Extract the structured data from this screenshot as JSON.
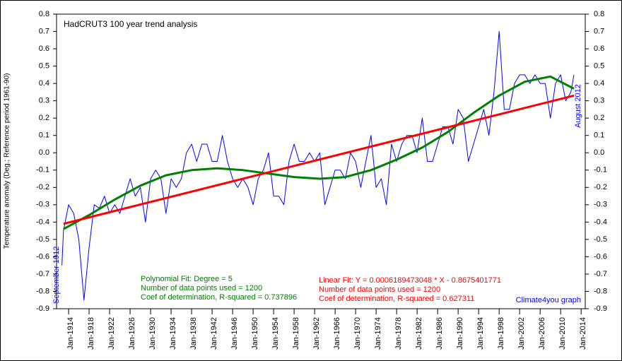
{
  "chart_data": {
    "type": "line",
    "title": "HadCRUT3 100 year trend analysis",
    "y_label": "Temperature anomaly (Deg.; Reference period 1961-90)",
    "annotations": {
      "start": "September 1912",
      "end": "August 2012",
      "poly_1": "Polynomial Fit:   Degree = 5",
      "poly_2": "Number of data points used = 1200",
      "poly_3": "Coef of determination, R-squared = 0.737896",
      "lin_1": "Linear Fit:   Y = 0.0006189473048 * X - 0.8675401771",
      "lin_2": "Number of data points used = 1200",
      "lin_3": "Coef of determination, R-squared = 0.627311",
      "credit": "Climate4you graph"
    },
    "x": [
      1912.7,
      1913,
      1914,
      1915,
      1916,
      1917,
      1918,
      1919,
      1920,
      1921,
      1922,
      1923,
      1924,
      1925,
      1926,
      1927,
      1928,
      1929,
      1930,
      1931,
      1932,
      1933,
      1934,
      1935,
      1936,
      1937,
      1938,
      1939,
      1940,
      1941,
      1942,
      1943,
      1944,
      1945,
      1946,
      1947,
      1948,
      1949,
      1950,
      1951,
      1952,
      1953,
      1954,
      1955,
      1956,
      1957,
      1958,
      1959,
      1960,
      1961,
      1962,
      1963,
      1964,
      1965,
      1966,
      1967,
      1968,
      1969,
      1970,
      1971,
      1972,
      1973,
      1974,
      1975,
      1976,
      1977,
      1978,
      1979,
      1980,
      1981,
      1982,
      1983,
      1984,
      1985,
      1986,
      1987,
      1988,
      1989,
      1990,
      1991,
      1992,
      1993,
      1994,
      1995,
      1996,
      1997,
      1998,
      1999,
      2000,
      2001,
      2002,
      2003,
      2004,
      2005,
      2006,
      2007,
      2008,
      2009,
      2010,
      2011,
      2012,
      2012.6
    ],
    "series": [
      {
        "color": "#0000ff",
        "values": [
          -0.65,
          -0.45,
          -0.3,
          -0.35,
          -0.5,
          -0.85,
          -0.55,
          -0.3,
          -0.32,
          -0.25,
          -0.35,
          -0.3,
          -0.35,
          -0.25,
          -0.15,
          -0.25,
          -0.2,
          -0.4,
          -0.15,
          -0.1,
          -0.15,
          -0.35,
          -0.15,
          -0.2,
          -0.15,
          0.0,
          0.05,
          -0.05,
          0.05,
          0.05,
          -0.05,
          -0.05,
          0.1,
          -0.05,
          -0.15,
          -0.2,
          -0.15,
          -0.2,
          -0.3,
          -0.15,
          -0.1,
          0.0,
          -0.25,
          -0.25,
          -0.3,
          -0.05,
          0.05,
          -0.05,
          -0.05,
          0.0,
          -0.05,
          0.0,
          -0.3,
          -0.2,
          -0.1,
          -0.1,
          -0.15,
          0.0,
          -0.05,
          -0.2,
          -0.05,
          0.1,
          -0.2,
          -0.15,
          -0.3,
          0.05,
          -0.05,
          0.05,
          0.1,
          0.1,
          0.0,
          0.2,
          -0.05,
          -0.05,
          0.05,
          0.15,
          0.15,
          0.05,
          0.25,
          0.2,
          -0.05,
          0.05,
          0.15,
          0.25,
          0.1,
          0.35,
          0.7,
          0.25,
          0.25,
          0.4,
          0.45,
          0.45,
          0.4,
          0.45,
          0.4,
          0.4,
          0.2,
          0.4,
          0.45,
          0.3,
          0.35,
          0.45
        ]
      },
      {
        "color": "#008000",
        "x": [
          1913,
          1918,
          1923,
          1928,
          1933,
          1938,
          1943,
          1948,
          1953,
          1958,
          1963,
          1968,
          1973,
          1978,
          1983,
          1988,
          1993,
          1998,
          2003,
          2008,
          2012.6
        ],
        "values": [
          -0.44,
          -0.36,
          -0.27,
          -0.19,
          -0.13,
          -0.1,
          -0.09,
          -0.1,
          -0.12,
          -0.14,
          -0.15,
          -0.14,
          -0.1,
          -0.04,
          0.03,
          0.12,
          0.23,
          0.33,
          0.41,
          0.44,
          0.37
        ]
      },
      {
        "color": "#ff0000",
        "x": [
          1913,
          2012.6
        ],
        "values": [
          -0.41,
          0.33
        ]
      }
    ],
    "xlim": [
      1911.65,
      2014.8
    ],
    "xticks": [
      {
        "value": 1914,
        "label": "Jan-1914"
      },
      {
        "value": 1918,
        "label": "Jan-1918"
      },
      {
        "value": 1922,
        "label": "Jan-1922"
      },
      {
        "value": 1926,
        "label": "Jan-1926"
      },
      {
        "value": 1930,
        "label": "Jan-1930"
      },
      {
        "value": 1934,
        "label": "Jan-1934"
      },
      {
        "value": 1938,
        "label": "Jan-1938"
      },
      {
        "value": 1942,
        "label": "Jan-1942"
      },
      {
        "value": 1946,
        "label": "Jan-1946"
      },
      {
        "value": 1950,
        "label": "Jan-1950"
      },
      {
        "value": 1954,
        "label": "Jan-1954"
      },
      {
        "value": 1958,
        "label": "Jan-1958"
      },
      {
        "value": 1962,
        "label": "Jan-1962"
      },
      {
        "value": 1966,
        "label": "Jan-1966"
      },
      {
        "value": 1970,
        "label": "Jan-1970"
      },
      {
        "value": 1974,
        "label": "Jan-1974"
      },
      {
        "value": 1978,
        "label": "Jan-1978"
      },
      {
        "value": 1982,
        "label": "Jan-1982"
      },
      {
        "value": 1986,
        "label": "Jan-1986"
      },
      {
        "value": 1990,
        "label": "Jan-1990"
      },
      {
        "value": 1994,
        "label": "Jan-1994"
      },
      {
        "value": 1998,
        "label": "Jan-1998"
      },
      {
        "value": 2002,
        "label": "Jan-2002"
      },
      {
        "value": 2006,
        "label": "Jan-2006"
      },
      {
        "value": 2010,
        "label": "Jan-2010"
      },
      {
        "value": 2014,
        "label": "Jan-2014"
      }
    ],
    "ylim": [
      -0.9,
      0.8
    ],
    "yticks": [
      0.8,
      0.7,
      0.6,
      0.5,
      0.4,
      0.3,
      0.2,
      0.1,
      {
        "value": 0,
        "label": "0.0"
      },
      -0.1,
      -0.2,
      -0.3,
      -0.4,
      -0.5,
      -0.6,
      -0.7,
      -0.8,
      -0.9
    ]
  }
}
